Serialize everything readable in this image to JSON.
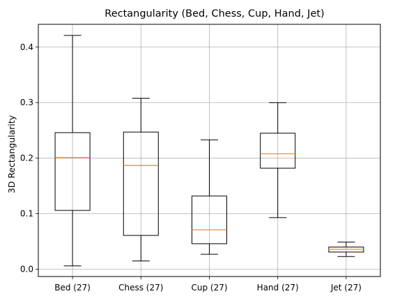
{
  "chart_data": {
    "type": "boxplot",
    "title": "Rectangularity (Bed, Chess, Cup, Hand, Jet)",
    "xlabel": "",
    "ylabel": "3D Rectangularity",
    "ylim": [
      -0.013,
      0.441
    ],
    "yticks": [
      0.0,
      0.1,
      0.2,
      0.3,
      0.4
    ],
    "ytick_labels": [
      "0.0",
      "0.1",
      "0.2",
      "0.3",
      "0.4"
    ],
    "grid": true,
    "categories": [
      "Bed (27)",
      "Chess (27)",
      "Cup (27)",
      "Hand (27)",
      "Jet (27)"
    ],
    "boxes": [
      {
        "whisker_low": 0.006,
        "q1": 0.106,
        "median": 0.201,
        "q3": 0.246,
        "whisker_high": 0.421
      },
      {
        "whisker_low": 0.015,
        "q1": 0.061,
        "median": 0.187,
        "q3": 0.247,
        "whisker_high": 0.308
      },
      {
        "whisker_low": 0.027,
        "q1": 0.046,
        "median": 0.071,
        "q3": 0.132,
        "whisker_high": 0.233
      },
      {
        "whisker_low": 0.093,
        "q1": 0.182,
        "median": 0.208,
        "q3": 0.245,
        "whisker_high": 0.3
      },
      {
        "whisker_low": 0.023,
        "q1": 0.031,
        "median": 0.036,
        "q3": 0.04,
        "whisker_high": 0.049
      }
    ],
    "colors": {
      "box": "#000000",
      "median": "#ff7f0e",
      "grid": "#b0b0b0"
    }
  }
}
